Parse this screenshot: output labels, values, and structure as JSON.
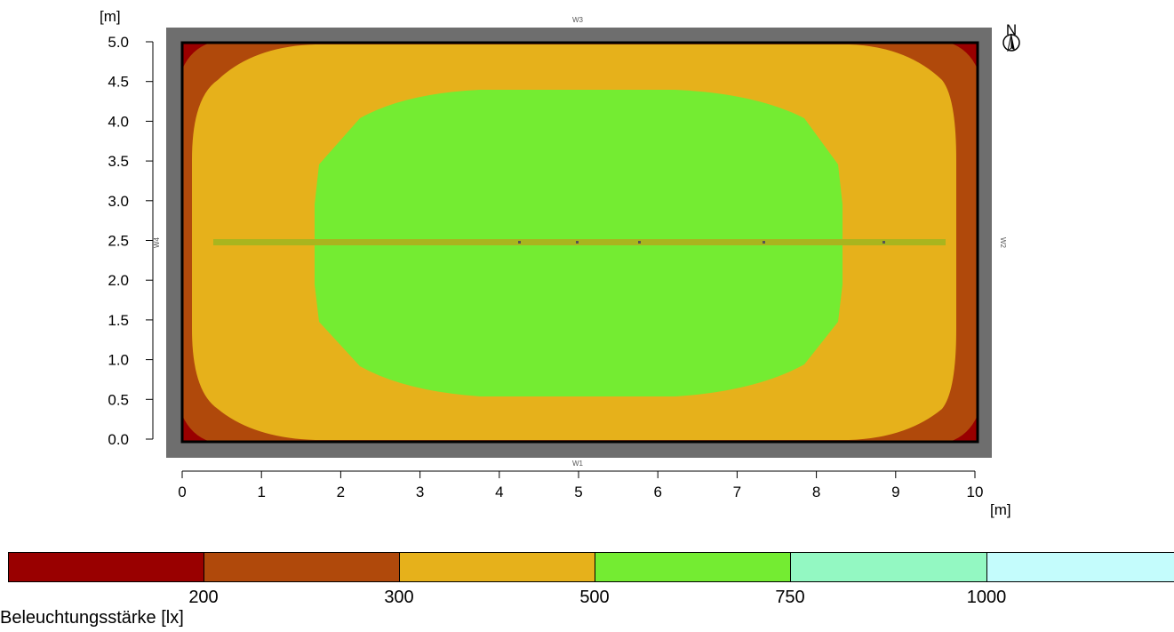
{
  "plot": {
    "y_unit": "[m]",
    "x_unit": "[m]",
    "y_ticks": [
      "0.0",
      "0.5",
      "1.0",
      "1.5",
      "2.0",
      "2.5",
      "3.0",
      "3.5",
      "4.0",
      "4.5",
      "5.0"
    ],
    "x_ticks": [
      "0",
      "1",
      "2",
      "3",
      "4",
      "5",
      "6",
      "7",
      "8",
      "9",
      "10"
    ],
    "north_label": "N",
    "wall_labels": {
      "top": "W3",
      "bottom": "W1",
      "left": "W4",
      "right": "W2"
    }
  },
  "legend": {
    "title": "Beleuchtungsstärke [lx]",
    "ticks": [
      "200",
      "300",
      "500",
      "750",
      "1000"
    ],
    "colors": [
      "#990000",
      "#b0490b",
      "#e6b11b",
      "#74ec32",
      "#93f8c2",
      "#c4fcfc"
    ]
  }
}
